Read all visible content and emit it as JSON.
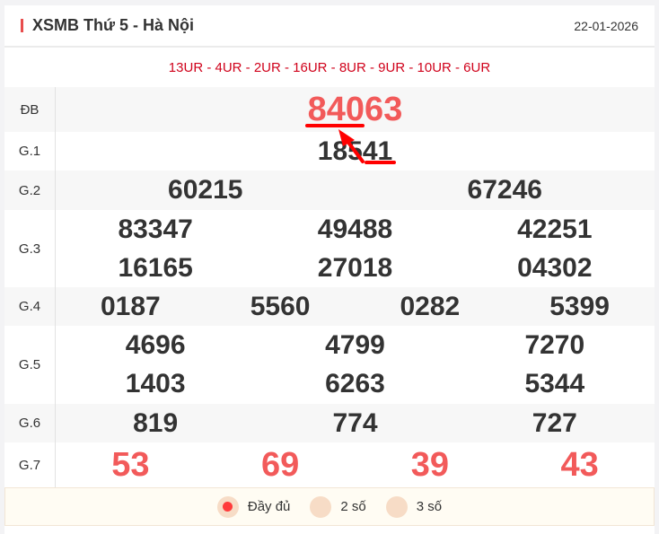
{
  "header": {
    "title": "XSMB Thứ 5 - Hà Nội",
    "date": "22-01-2026"
  },
  "codes": "13UR - 4UR - 2UR - 16UR - 8UR - 9UR - 10UR - 6UR",
  "rows": [
    {
      "label": "ĐB",
      "numbers": [
        "84063"
      ]
    },
    {
      "label": "G.1",
      "numbers": [
        "18541"
      ]
    },
    {
      "label": "G.2",
      "numbers": [
        "60215",
        "67246"
      ]
    },
    {
      "label": "G.3",
      "numbers": [
        "83347",
        "49488",
        "42251",
        "16165",
        "27018",
        "04302"
      ]
    },
    {
      "label": "G.4",
      "numbers": [
        "0187",
        "5560",
        "0282",
        "5399"
      ]
    },
    {
      "label": "G.5",
      "numbers": [
        "4696",
        "4799",
        "7270",
        "1403",
        "6263",
        "5344"
      ]
    },
    {
      "label": "G.6",
      "numbers": [
        "819",
        "774",
        "727"
      ]
    },
    {
      "label": "G.7",
      "numbers": [
        "53",
        "69",
        "39",
        "43"
      ]
    }
  ],
  "filters": [
    {
      "label": "Đầy đủ",
      "selected": true
    },
    {
      "label": "2 số",
      "selected": false
    },
    {
      "label": "3 số",
      "selected": false
    }
  ],
  "colors": {
    "accent": "#f25a5a",
    "codes": "#d0021b",
    "annotation": "#ff0000"
  }
}
